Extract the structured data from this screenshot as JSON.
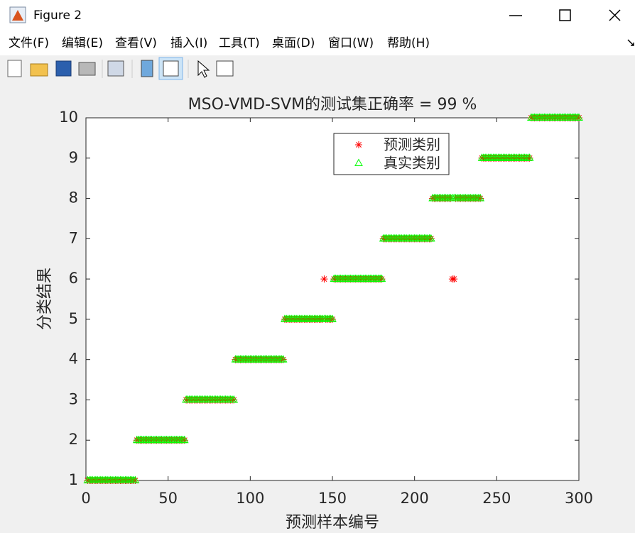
{
  "window": {
    "title": "Figure 2",
    "menu": [
      "文件(F)",
      "编辑(E)",
      "查看(V)",
      "插入(I)",
      "工具(T)",
      "桌面(D)",
      "窗口(W)",
      "帮助(H)"
    ]
  },
  "chart_data": {
    "type": "scatter",
    "title": "MSO-VMD-SVM的测试集正确率 = 99 %",
    "xlabel": "预测样本编号",
    "ylabel": "分类结果",
    "xlim": [
      0,
      300
    ],
    "xticks": [
      0,
      50,
      100,
      150,
      200,
      250,
      300
    ],
    "ylim": [
      1,
      10
    ],
    "yticks": [
      1,
      2,
      3,
      4,
      5,
      6,
      7,
      8,
      9,
      10
    ],
    "legend": "north",
    "x": [
      1,
      2,
      3,
      4,
      5,
      6,
      7,
      8,
      9,
      10,
      11,
      12,
      13,
      14,
      15,
      16,
      17,
      18,
      19,
      20,
      21,
      22,
      23,
      24,
      25,
      26,
      27,
      28,
      29,
      30,
      31,
      32,
      33,
      34,
      35,
      36,
      37,
      38,
      39,
      40,
      41,
      42,
      43,
      44,
      45,
      46,
      47,
      48,
      49,
      50,
      51,
      52,
      53,
      54,
      55,
      56,
      57,
      58,
      59,
      60,
      61,
      62,
      63,
      64,
      65,
      66,
      67,
      68,
      69,
      70,
      71,
      72,
      73,
      74,
      75,
      76,
      77,
      78,
      79,
      80,
      81,
      82,
      83,
      84,
      85,
      86,
      87,
      88,
      89,
      90,
      91,
      92,
      93,
      94,
      95,
      96,
      97,
      98,
      99,
      100,
      101,
      102,
      103,
      104,
      105,
      106,
      107,
      108,
      109,
      110,
      111,
      112,
      113,
      114,
      115,
      116,
      117,
      118,
      119,
      120,
      121,
      122,
      123,
      124,
      125,
      126,
      127,
      128,
      129,
      130,
      131,
      132,
      133,
      134,
      135,
      136,
      137,
      138,
      139,
      140,
      141,
      142,
      143,
      144,
      145,
      146,
      147,
      148,
      149,
      150,
      151,
      152,
      153,
      154,
      155,
      156,
      157,
      158,
      159,
      160,
      161,
      162,
      163,
      164,
      165,
      166,
      167,
      168,
      169,
      170,
      171,
      172,
      173,
      174,
      175,
      176,
      177,
      178,
      179,
      180,
      181,
      182,
      183,
      184,
      185,
      186,
      187,
      188,
      189,
      190,
      191,
      192,
      193,
      194,
      195,
      196,
      197,
      198,
      199,
      200,
      201,
      202,
      203,
      204,
      205,
      206,
      207,
      208,
      209,
      210,
      211,
      212,
      213,
      214,
      215,
      216,
      217,
      218,
      219,
      220,
      221,
      222,
      223,
      224,
      225,
      226,
      227,
      228,
      229,
      230,
      231,
      232,
      233,
      234,
      235,
      236,
      237,
      238,
      239,
      240,
      241,
      242,
      243,
      244,
      245,
      246,
      247,
      248,
      249,
      250,
      251,
      252,
      253,
      254,
      255,
      256,
      257,
      258,
      259,
      260,
      261,
      262,
      263,
      264,
      265,
      266,
      267,
      268,
      269,
      270,
      271,
      272,
      273,
      274,
      275,
      276,
      277,
      278,
      279,
      280,
      281,
      282,
      283,
      284,
      285,
      286,
      287,
      288,
      289,
      290,
      291,
      292,
      293,
      294,
      295,
      296,
      297,
      298,
      299,
      300
    ],
    "series": [
      {
        "name": "预测类别",
        "color": "#ff0000",
        "marker": "star",
        "values": [
          1,
          1,
          1,
          1,
          1,
          1,
          1,
          1,
          1,
          1,
          1,
          1,
          1,
          1,
          1,
          1,
          1,
          1,
          1,
          1,
          1,
          1,
          1,
          1,
          1,
          1,
          1,
          1,
          1,
          1,
          2,
          2,
          2,
          2,
          2,
          2,
          2,
          2,
          2,
          2,
          2,
          2,
          2,
          2,
          2,
          2,
          2,
          2,
          2,
          2,
          2,
          2,
          2,
          2,
          2,
          2,
          2,
          2,
          2,
          2,
          3,
          3,
          3,
          3,
          3,
          3,
          3,
          3,
          3,
          3,
          3,
          3,
          3,
          3,
          3,
          3,
          3,
          3,
          3,
          3,
          3,
          3,
          3,
          3,
          3,
          3,
          3,
          3,
          3,
          3,
          4,
          4,
          4,
          4,
          4,
          4,
          4,
          4,
          4,
          4,
          4,
          4,
          4,
          4,
          4,
          4,
          4,
          4,
          4,
          4,
          4,
          4,
          4,
          4,
          4,
          4,
          4,
          4,
          4,
          4,
          5,
          5,
          5,
          5,
          5,
          5,
          5,
          5,
          5,
          5,
          5,
          5,
          5,
          5,
          5,
          5,
          5,
          5,
          5,
          5,
          5,
          5,
          5,
          5,
          6,
          5,
          5,
          5,
          5,
          5,
          6,
          6,
          6,
          6,
          6,
          6,
          6,
          6,
          6,
          6,
          6,
          6,
          6,
          6,
          6,
          6,
          6,
          6,
          6,
          6,
          6,
          6,
          6,
          6,
          6,
          6,
          6,
          6,
          6,
          6,
          7,
          7,
          7,
          7,
          7,
          7,
          7,
          7,
          7,
          7,
          7,
          7,
          7,
          7,
          7,
          7,
          7,
          7,
          7,
          7,
          7,
          7,
          7,
          7,
          7,
          7,
          7,
          7,
          7,
          7,
          8,
          8,
          8,
          8,
          8,
          8,
          8,
          8,
          8,
          8,
          8,
          8,
          6,
          6,
          8,
          8,
          8,
          8,
          8,
          8,
          8,
          8,
          8,
          8,
          8,
          8,
          8,
          8,
          8,
          8,
          9,
          9,
          9,
          9,
          9,
          9,
          9,
          9,
          9,
          9,
          9,
          9,
          9,
          9,
          9,
          9,
          9,
          9,
          9,
          9,
          9,
          9,
          9,
          9,
          9,
          9,
          9,
          9,
          9,
          9,
          10,
          10,
          10,
          10,
          10,
          10,
          10,
          10,
          10,
          10,
          10,
          10,
          10,
          10,
          10,
          10,
          10,
          10,
          10,
          10,
          10,
          10,
          10,
          10,
          10,
          10,
          10,
          10,
          10,
          10
        ]
      },
      {
        "name": "真实类别",
        "color": "#00ff00",
        "marker": "triangle",
        "values": [
          1,
          1,
          1,
          1,
          1,
          1,
          1,
          1,
          1,
          1,
          1,
          1,
          1,
          1,
          1,
          1,
          1,
          1,
          1,
          1,
          1,
          1,
          1,
          1,
          1,
          1,
          1,
          1,
          1,
          1,
          2,
          2,
          2,
          2,
          2,
          2,
          2,
          2,
          2,
          2,
          2,
          2,
          2,
          2,
          2,
          2,
          2,
          2,
          2,
          2,
          2,
          2,
          2,
          2,
          2,
          2,
          2,
          2,
          2,
          2,
          3,
          3,
          3,
          3,
          3,
          3,
          3,
          3,
          3,
          3,
          3,
          3,
          3,
          3,
          3,
          3,
          3,
          3,
          3,
          3,
          3,
          3,
          3,
          3,
          3,
          3,
          3,
          3,
          3,
          3,
          4,
          4,
          4,
          4,
          4,
          4,
          4,
          4,
          4,
          4,
          4,
          4,
          4,
          4,
          4,
          4,
          4,
          4,
          4,
          4,
          4,
          4,
          4,
          4,
          4,
          4,
          4,
          4,
          4,
          4,
          5,
          5,
          5,
          5,
          5,
          5,
          5,
          5,
          5,
          5,
          5,
          5,
          5,
          5,
          5,
          5,
          5,
          5,
          5,
          5,
          5,
          5,
          5,
          5,
          5,
          5,
          5,
          5,
          5,
          5,
          6,
          6,
          6,
          6,
          6,
          6,
          6,
          6,
          6,
          6,
          6,
          6,
          6,
          6,
          6,
          6,
          6,
          6,
          6,
          6,
          6,
          6,
          6,
          6,
          6,
          6,
          6,
          6,
          6,
          6,
          7,
          7,
          7,
          7,
          7,
          7,
          7,
          7,
          7,
          7,
          7,
          7,
          7,
          7,
          7,
          7,
          7,
          7,
          7,
          7,
          7,
          7,
          7,
          7,
          7,
          7,
          7,
          7,
          7,
          7,
          8,
          8,
          8,
          8,
          8,
          8,
          8,
          8,
          8,
          8,
          8,
          8,
          8,
          8,
          8,
          8,
          8,
          8,
          8,
          8,
          8,
          8,
          8,
          8,
          8,
          8,
          8,
          8,
          8,
          8,
          9,
          9,
          9,
          9,
          9,
          9,
          9,
          9,
          9,
          9,
          9,
          9,
          9,
          9,
          9,
          9,
          9,
          9,
          9,
          9,
          9,
          9,
          9,
          9,
          9,
          9,
          9,
          9,
          9,
          9,
          10,
          10,
          10,
          10,
          10,
          10,
          10,
          10,
          10,
          10,
          10,
          10,
          10,
          10,
          10,
          10,
          10,
          10,
          10,
          10,
          10,
          10,
          10,
          10,
          10,
          10,
          10,
          10,
          10,
          10
        ]
      }
    ]
  }
}
